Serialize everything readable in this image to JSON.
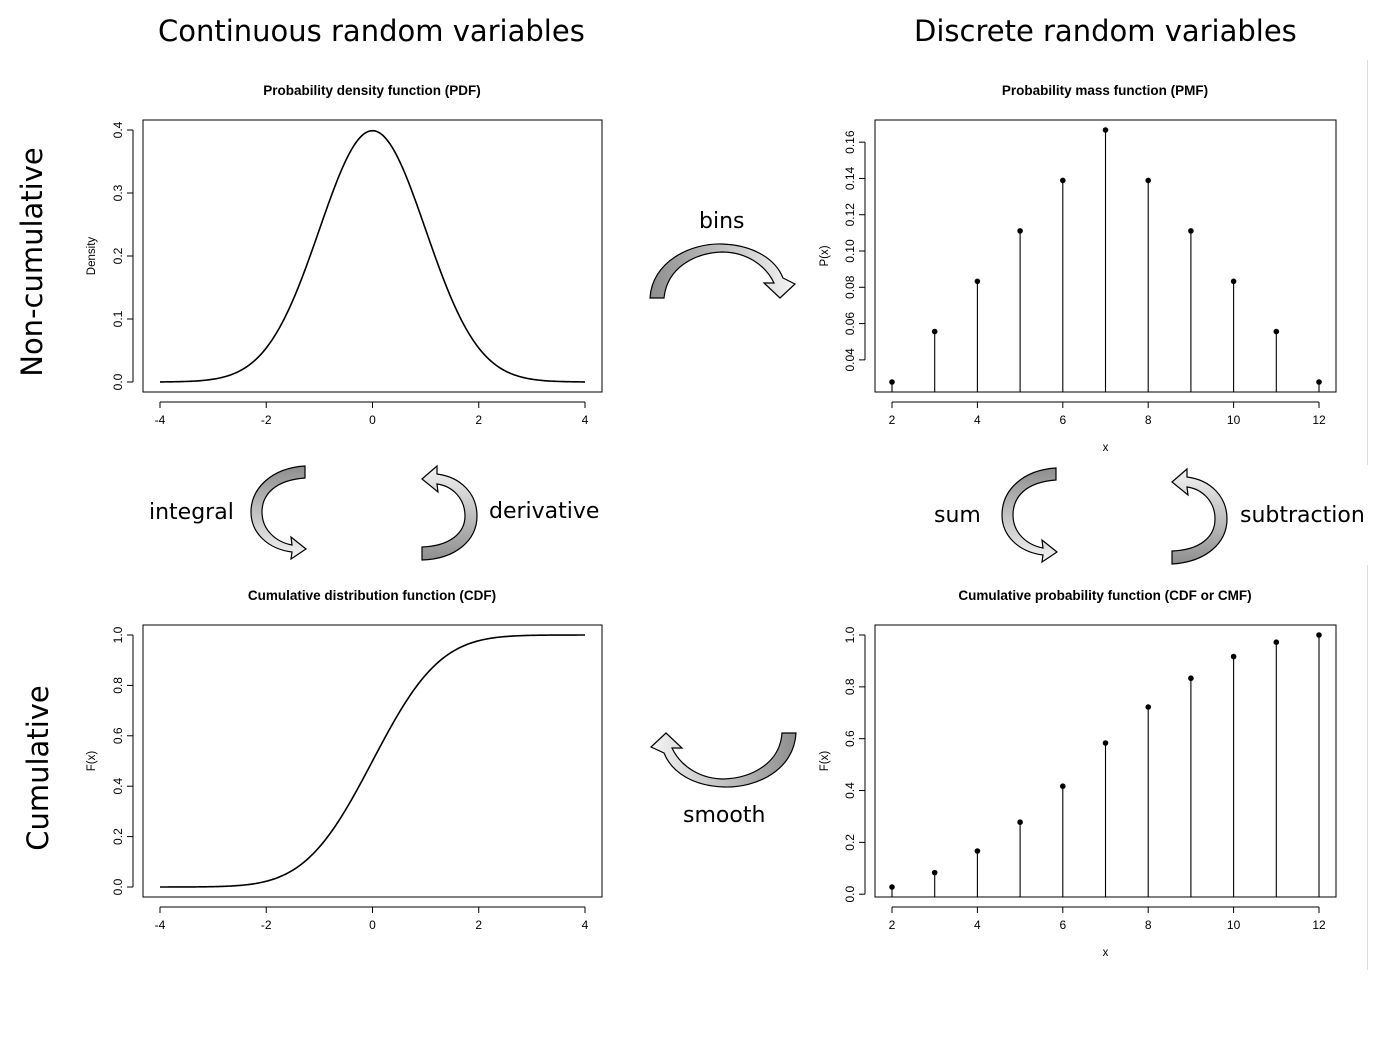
{
  "headings": {
    "continuous": "Continuous random variables",
    "discrete": "Discrete random variables",
    "noncumulative": "Non-cumulative",
    "cumulative": "Cumulative"
  },
  "operations": {
    "bins": "bins",
    "integral": "integral",
    "derivative": "derivative",
    "sum": "sum",
    "subtraction": "subtraction",
    "smooth": "smooth"
  },
  "colors": {
    "arrow_dark": "#8e8e8e",
    "arrow_light": "#f2f2f2",
    "line": "#000000"
  },
  "chart_data": [
    {
      "id": "pdf",
      "type": "line",
      "function": "normal_pdf",
      "params": {
        "mean": 0,
        "sd": 1
      },
      "title": "Probability density function (PDF)",
      "xlabel": "",
      "ylabel": "Density",
      "xlim": [
        -4,
        4
      ],
      "ylim": [
        0,
        0.4
      ],
      "xticks": [
        -4,
        -2,
        0,
        2,
        4
      ],
      "yticks": [
        0.0,
        0.1,
        0.2,
        0.3,
        0.4
      ],
      "xtick_labels": [
        "-4",
        "-2",
        "0",
        "2",
        "4"
      ],
      "ytick_labels": [
        "0.0",
        "0.1",
        "0.2",
        "0.3",
        "0.4"
      ],
      "grid": false
    },
    {
      "id": "pmf",
      "type": "stem",
      "title": "Probability mass function (PMF)",
      "xlabel": "x",
      "ylabel": "P(x)",
      "x": [
        2,
        3,
        4,
        5,
        6,
        7,
        8,
        9,
        10,
        11,
        12
      ],
      "y": [
        0.0278,
        0.0556,
        0.0833,
        0.1111,
        0.1389,
        0.1667,
        0.1389,
        0.1111,
        0.0833,
        0.0556,
        0.0278
      ],
      "xlim": [
        2,
        12
      ],
      "ylim": [
        0.0278,
        0.1667
      ],
      "xticks": [
        2,
        4,
        6,
        8,
        10,
        12
      ],
      "yticks": [
        0.04,
        0.06,
        0.08,
        0.1,
        0.12,
        0.14,
        0.16
      ],
      "xtick_labels": [
        "2",
        "4",
        "6",
        "8",
        "10",
        "12"
      ],
      "ytick_labels": [
        "0.04",
        "0.06",
        "0.08",
        "0.10",
        "0.12",
        "0.14",
        "0.16"
      ],
      "grid": false
    },
    {
      "id": "cdf",
      "type": "line",
      "function": "normal_cdf",
      "params": {
        "mean": 0,
        "sd": 1
      },
      "title": "Cumulative distribution function (CDF)",
      "xlabel": "",
      "ylabel": "F(x)",
      "xlim": [
        -4,
        4
      ],
      "ylim": [
        0,
        1
      ],
      "xticks": [
        -4,
        -2,
        0,
        2,
        4
      ],
      "yticks": [
        0.0,
        0.2,
        0.4,
        0.6,
        0.8,
        1.0
      ],
      "xtick_labels": [
        "-4",
        "-2",
        "0",
        "2",
        "4"
      ],
      "ytick_labels": [
        "0.0",
        "0.2",
        "0.4",
        "0.6",
        "0.8",
        "1.0"
      ],
      "grid": false
    },
    {
      "id": "cmf",
      "type": "stem",
      "title": "Cumulative probability function (CDF or CMF)",
      "xlabel": "x",
      "ylabel": "F(x)",
      "x": [
        2,
        3,
        4,
        5,
        6,
        7,
        8,
        9,
        10,
        11,
        12
      ],
      "y": [
        0.0278,
        0.0833,
        0.1667,
        0.2778,
        0.4167,
        0.5833,
        0.7222,
        0.8333,
        0.9167,
        0.9722,
        1.0
      ],
      "xlim": [
        2,
        12
      ],
      "ylim": [
        0.0278,
        1.0
      ],
      "xticks": [
        2,
        4,
        6,
        8,
        10,
        12
      ],
      "yticks": [
        0.0,
        0.2,
        0.4,
        0.6,
        0.8,
        1.0
      ],
      "xtick_labels": [
        "2",
        "4",
        "6",
        "8",
        "10",
        "12"
      ],
      "ytick_labels": [
        "0.0",
        "0.2",
        "0.4",
        "0.6",
        "0.8",
        "1.0"
      ],
      "grid": false
    }
  ]
}
